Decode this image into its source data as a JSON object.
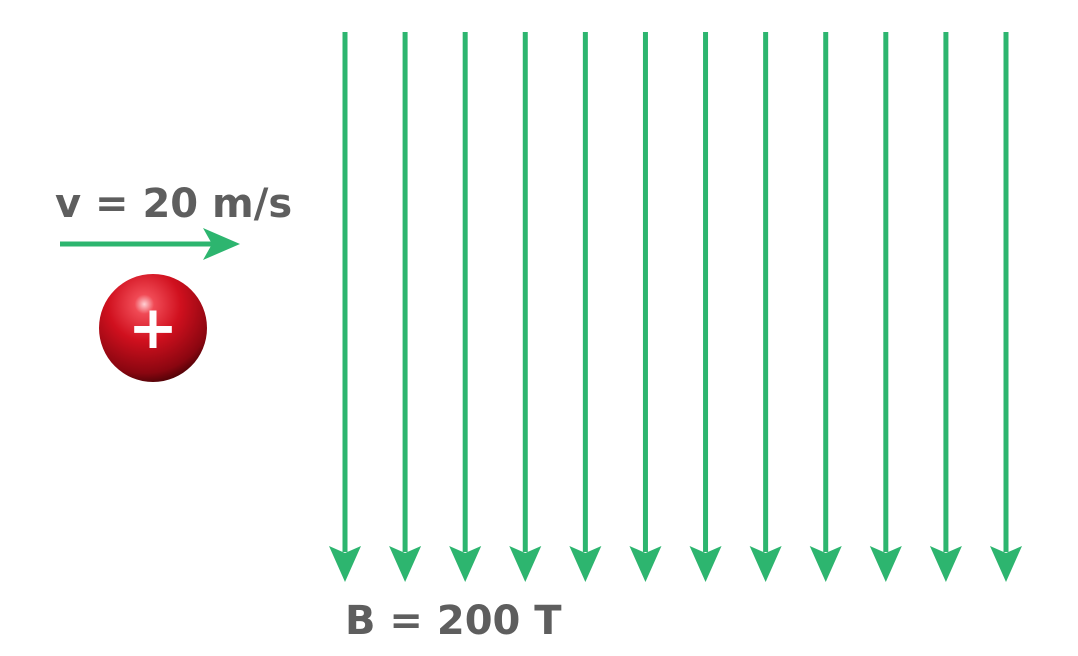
{
  "velocity": {
    "label": "v = 20 m/s",
    "color": "#2db56f"
  },
  "particle": {
    "charge_symbol": "+",
    "color": "#d0101e",
    "symbol_color": "#ffffff"
  },
  "field": {
    "label": "B = 200 T",
    "color": "#2db56f",
    "direction": "down",
    "line_count": 12
  },
  "text_color": "#5e5e5e"
}
